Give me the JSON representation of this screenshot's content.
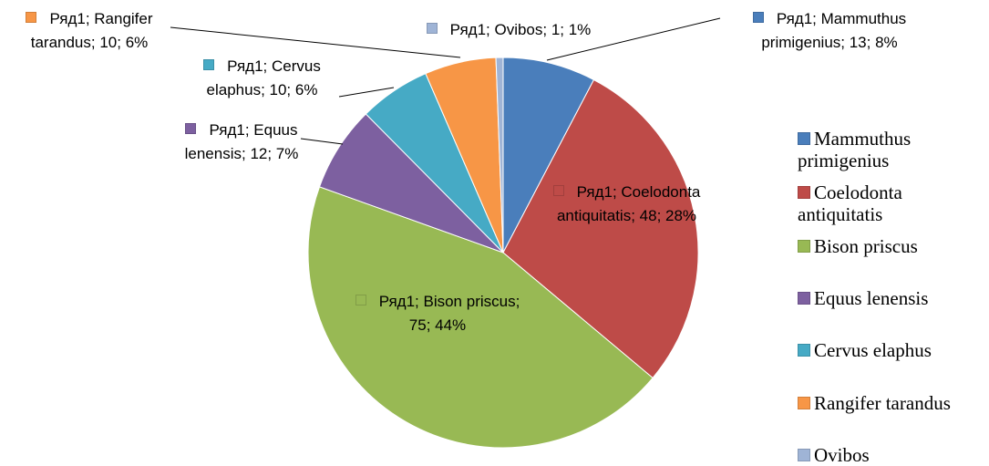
{
  "chart_data": {
    "type": "pie",
    "categories": [
      "Mammuthus primigenius",
      "Coelodonta antiquitatis",
      "Bison priscus",
      "Equus lenensis",
      "Cervus elaphus",
      "Rangifer tarandus",
      "Ovibos"
    ],
    "values": [
      13,
      48,
      75,
      12,
      10,
      10,
      1
    ],
    "value_labels": [
      "Ряд1; Mammuthus primigenius; 13; 8%",
      "Ряд1; Coelodonta antiquitatis; 48; 28%",
      "Ряд1; Bison priscus; 75; 44%",
      "Ряд1; Equus lenensis; 12; 7%",
      "Ряд1; Cervus elaphus; 10; 6%",
      "Ряд1; Rangifer tarandus; 10; 6%",
      "Ряд1; Ovibos; 1; 1%"
    ],
    "colors": [
      "#4a7ebb",
      "#be4b48",
      "#98b954",
      "#7d60a0",
      "#46aac5",
      "#f79646",
      "#9fb4d6"
    ],
    "legend": "right"
  }
}
